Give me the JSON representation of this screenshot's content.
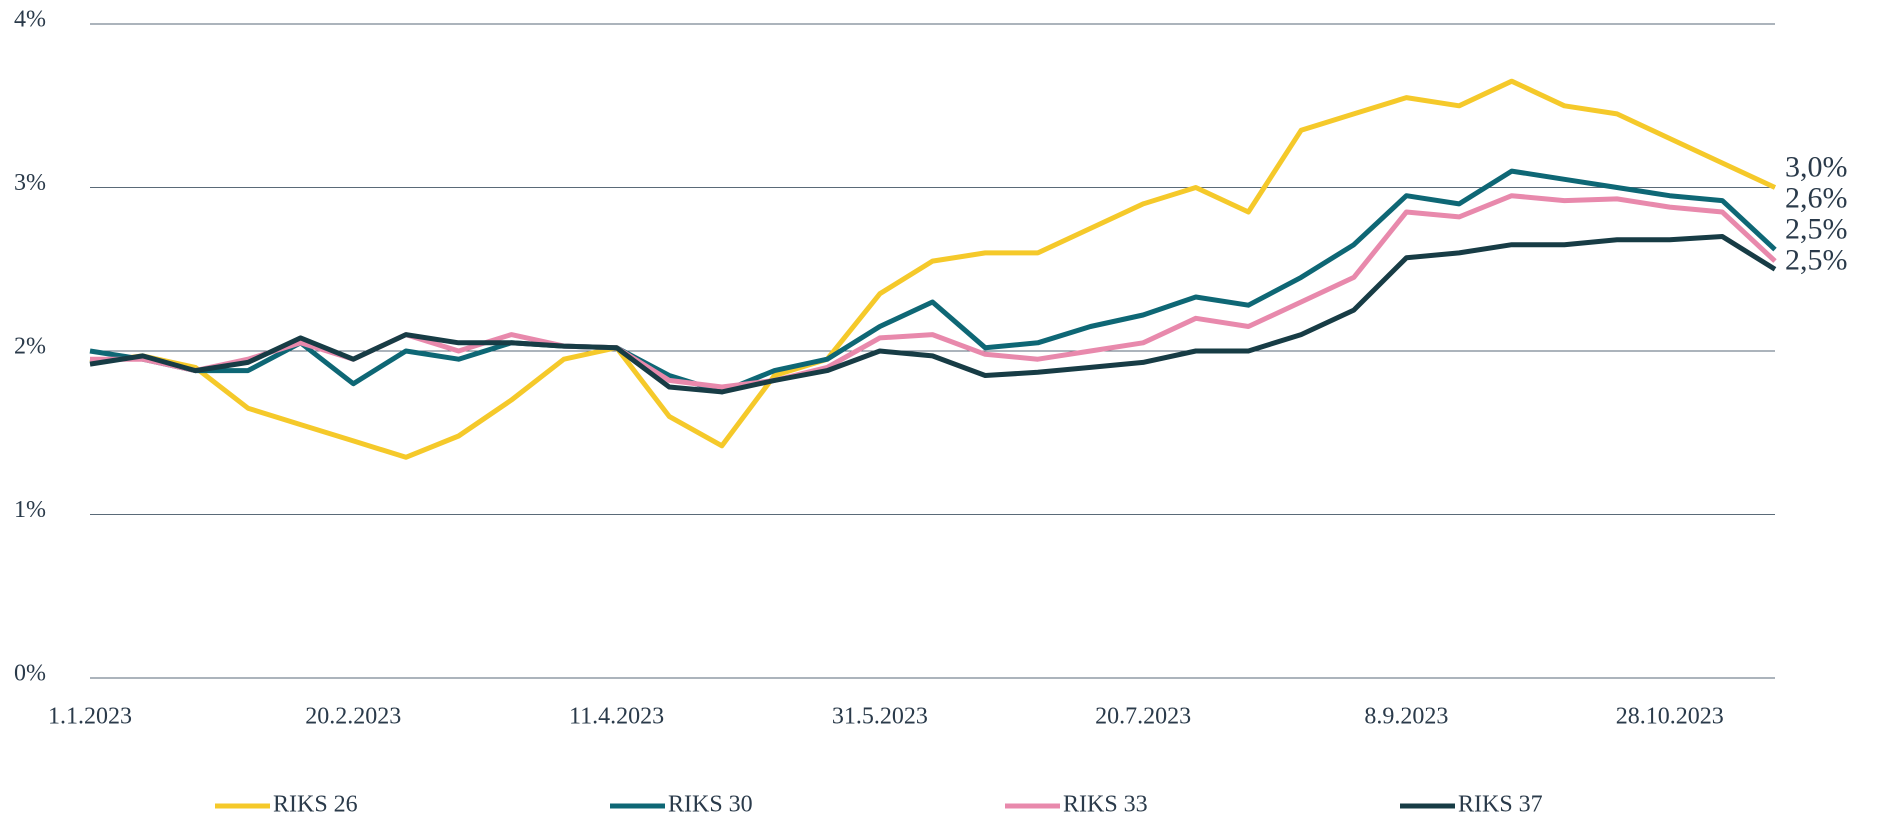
{
  "chart_data": {
    "type": "line",
    "categories": [
      "1.1.2023",
      null,
      null,
      null,
      null,
      "20.2.2023",
      null,
      null,
      null,
      null,
      "11.4.2023",
      null,
      null,
      null,
      null,
      "31.5.2023",
      null,
      null,
      null,
      null,
      "20.7.2023",
      null,
      null,
      null,
      null,
      "8.9.2023",
      null,
      null,
      null,
      null,
      "28.10.2023",
      null,
      null
    ],
    "series": [
      {
        "name": "RIKS 26",
        "color": "#f5c92a",
        "values": [
          1.93,
          1.97,
          1.9,
          1.65,
          1.55,
          1.45,
          1.35,
          1.48,
          1.7,
          1.95,
          2.02,
          1.6,
          1.42,
          1.85,
          1.95,
          2.35,
          2.55,
          2.6,
          2.6,
          2.75,
          2.9,
          3.0,
          2.85,
          3.35,
          3.45,
          3.55,
          3.5,
          3.65,
          3.5,
          3.45,
          3.3,
          3.15,
          3.0
        ],
        "value_labels": [
          null,
          null,
          null,
          null,
          null,
          null,
          null,
          null,
          null,
          null,
          null,
          null,
          null,
          null,
          null,
          null,
          null,
          null,
          null,
          null,
          null,
          null,
          null,
          null,
          null,
          null,
          null,
          null,
          null,
          null,
          null,
          null,
          "3,0%"
        ]
      },
      {
        "name": "RIKS 30",
        "color": "#0e6775",
        "values": [
          2.0,
          1.95,
          1.88,
          1.88,
          2.05,
          1.8,
          2.0,
          1.95,
          2.05,
          2.03,
          2.02,
          1.85,
          1.75,
          1.88,
          1.95,
          2.15,
          2.3,
          2.02,
          2.05,
          2.15,
          2.22,
          2.33,
          2.28,
          2.45,
          2.65,
          2.95,
          2.9,
          3.1,
          3.05,
          3.0,
          2.95,
          2.92,
          2.62
        ],
        "value_labels": [
          null,
          null,
          null,
          null,
          null,
          null,
          null,
          null,
          null,
          null,
          null,
          null,
          null,
          null,
          null,
          null,
          null,
          null,
          null,
          null,
          null,
          null,
          null,
          null,
          null,
          null,
          null,
          null,
          null,
          null,
          null,
          null,
          "2,6%"
        ]
      },
      {
        "name": "RIKS 33",
        "color": "#e889ac",
        "values": [
          1.95,
          1.95,
          1.88,
          1.95,
          2.05,
          1.95,
          2.1,
          2.0,
          2.1,
          2.03,
          2.02,
          1.82,
          1.78,
          1.82,
          1.9,
          2.08,
          2.1,
          1.98,
          1.95,
          2.0,
          2.05,
          2.2,
          2.15,
          2.3,
          2.45,
          2.85,
          2.82,
          2.95,
          2.92,
          2.93,
          2.88,
          2.85,
          2.55
        ],
        "value_labels": [
          null,
          null,
          null,
          null,
          null,
          null,
          null,
          null,
          null,
          null,
          null,
          null,
          null,
          null,
          null,
          null,
          null,
          null,
          null,
          null,
          null,
          null,
          null,
          null,
          null,
          null,
          null,
          null,
          null,
          null,
          null,
          null,
          "2,5%"
        ]
      },
      {
        "name": "RIKS 37",
        "color": "#173c45",
        "values": [
          1.92,
          1.97,
          1.88,
          1.93,
          2.08,
          1.95,
          2.1,
          2.05,
          2.05,
          2.03,
          2.02,
          1.78,
          1.75,
          1.82,
          1.88,
          2.0,
          1.97,
          1.85,
          1.87,
          1.9,
          1.93,
          2.0,
          2.0,
          2.1,
          2.25,
          2.57,
          2.6,
          2.65,
          2.65,
          2.68,
          2.68,
          2.7,
          2.5
        ],
        "value_labels": [
          null,
          null,
          null,
          null,
          null,
          null,
          null,
          null,
          null,
          null,
          null,
          null,
          null,
          null,
          null,
          null,
          null,
          null,
          null,
          null,
          null,
          null,
          null,
          null,
          null,
          null,
          null,
          null,
          null,
          null,
          null,
          null,
          "2,5%"
        ]
      }
    ],
    "ylim": [
      0,
      4
    ],
    "yticks": [
      {
        "value": 0,
        "label": "0%"
      },
      {
        "value": 1,
        "label": "1%"
      },
      {
        "value": 2,
        "label": "2%"
      },
      {
        "value": 3,
        "label": "3%"
      },
      {
        "value": 4,
        "label": "4%"
      }
    ],
    "grid": true,
    "legend": "bottom"
  }
}
